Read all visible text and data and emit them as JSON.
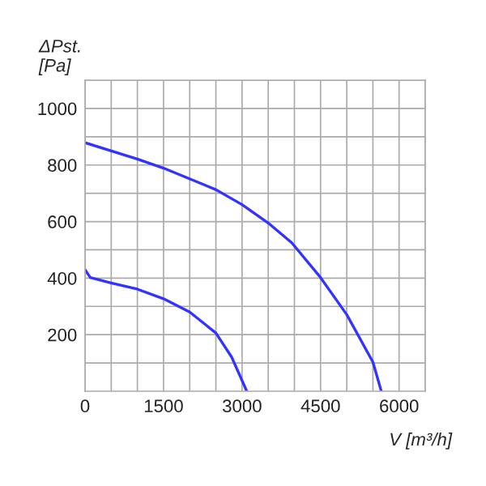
{
  "chart_data": {
    "type": "line",
    "xlabel": "V [m³/h]",
    "ylabel": "ΔPst.\n[Pa]",
    "xlim": [
      0,
      6500
    ],
    "ylim": [
      0,
      1100
    ],
    "xticks": [
      0,
      {
        "value": 500,
        "label": null
      },
      {
        "value": 1000,
        "label": null
      },
      1500,
      {
        "value": 2000,
        "label": null
      },
      {
        "value": 2500,
        "label": null
      },
      3000,
      {
        "value": 3500,
        "label": null
      },
      {
        "value": 4000,
        "label": null
      },
      4500,
      {
        "value": 5000,
        "label": null
      },
      {
        "value": 5500,
        "label": null
      },
      6000,
      {
        "value": 6500,
        "label": null
      }
    ],
    "yticks": [
      {
        "value": 100,
        "label": null
      },
      200,
      {
        "value": 300,
        "label": null
      },
      400,
      {
        "value": 500,
        "label": null
      },
      600,
      {
        "value": 700,
        "label": null
      },
      800,
      {
        "value": 900,
        "label": null
      },
      1000,
      {
        "value": 1100,
        "label": null
      }
    ],
    "grid": true,
    "marker": "none",
    "line_style": "solid",
    "series": [
      {
        "color": "#3333ff",
        "x": [
          0,
          1000,
          1500,
          2500,
          3000,
          3500,
          3950,
          4500,
          5000,
          5500,
          5660
        ],
        "values": [
          879,
          821,
          789,
          713,
          660,
          595,
          525,
          402,
          271,
          103,
          0
        ]
      },
      {
        "color": "#3333ff",
        "x": [
          0,
          100,
          500,
          1000,
          1500,
          2000,
          2500,
          2800,
          3090
        ],
        "values": [
          430,
          402,
          383,
          361,
          327,
          280,
          206,
          121,
          0
        ]
      }
    ]
  }
}
